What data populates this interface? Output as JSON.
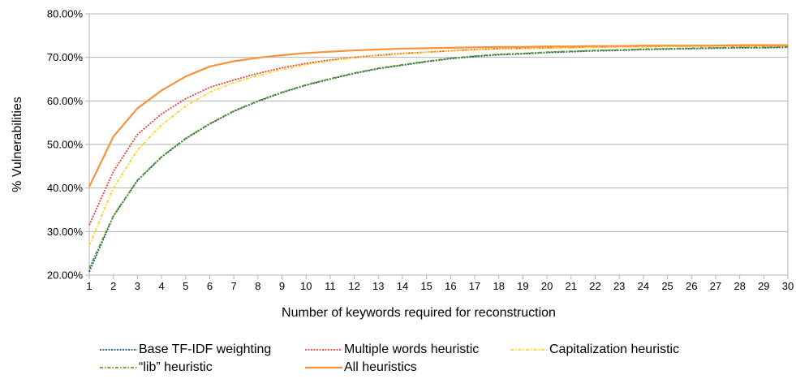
{
  "chart_data": {
    "type": "line",
    "title": "",
    "xlabel": "Number of keywords required for reconstruction",
    "ylabel": "% Vulnerabilities",
    "x": [
      1,
      2,
      3,
      4,
      5,
      6,
      7,
      8,
      9,
      10,
      11,
      12,
      13,
      14,
      15,
      16,
      17,
      18,
      19,
      20,
      21,
      22,
      23,
      24,
      25,
      26,
      27,
      28,
      29,
      30
    ],
    "xlim": [
      1,
      30
    ],
    "ylim": [
      20,
      80
    ],
    "y_ticks": [
      20,
      30,
      40,
      50,
      60,
      70,
      80
    ],
    "y_tick_labels": [
      "20.00%",
      "30.00%",
      "40.00%",
      "50.00%",
      "60.00%",
      "70.00%",
      "80.00%"
    ],
    "grid": true,
    "legend_position": "bottom",
    "series": [
      {
        "name": "Base TF-IDF weighting",
        "color": "#1f4e79",
        "dash": "dotted",
        "values": [
          20.8,
          33.5,
          41.7,
          47.1,
          51.3,
          54.7,
          57.6,
          59.9,
          61.9,
          63.6,
          65.0,
          66.3,
          67.4,
          68.2,
          69.0,
          69.7,
          70.2,
          70.6,
          70.8,
          71.1,
          71.3,
          71.5,
          71.6,
          71.8,
          71.9,
          72.0,
          72.1,
          72.2,
          72.2,
          72.3
        ]
      },
      {
        "name": "Multiple words heuristic",
        "color": "#e8413b",
        "dash": "dotted",
        "values": [
          31.5,
          43.8,
          52.3,
          57.0,
          60.5,
          63.1,
          64.8,
          66.3,
          67.6,
          68.6,
          69.4,
          70.0,
          70.5,
          70.9,
          71.2,
          71.5,
          71.8,
          72.0,
          72.1,
          72.2,
          72.3,
          72.4,
          72.5,
          72.5,
          72.6,
          72.6,
          72.6,
          72.7,
          72.7,
          72.7
        ]
      },
      {
        "name": "Capitalization heuristic",
        "color": "#ffd320",
        "dash": "dashdot",
        "values": [
          26.8,
          40.0,
          48.7,
          54.5,
          58.8,
          62.0,
          64.2,
          65.8,
          67.2,
          68.3,
          69.2,
          69.9,
          70.4,
          70.8,
          71.2,
          71.5,
          71.7,
          71.9,
          72.0,
          72.1,
          72.2,
          72.3,
          72.4,
          72.4,
          72.5,
          72.5,
          72.6,
          72.6,
          72.6,
          72.7
        ]
      },
      {
        "name": "“lib” heuristic",
        "color": "#579d1c",
        "dash": "dashdot",
        "values": [
          21.6,
          33.6,
          41.8,
          47.2,
          51.4,
          54.8,
          57.7,
          60.0,
          62.0,
          63.7,
          65.1,
          66.4,
          67.5,
          68.3,
          69.1,
          69.8,
          70.3,
          70.7,
          70.9,
          71.2,
          71.4,
          71.6,
          71.7,
          71.9,
          72.0,
          72.1,
          72.2,
          72.3,
          72.3,
          72.4
        ]
      },
      {
        "name": "All heuristics",
        "color": "#f7923a",
        "dash": "solid",
        "values": [
          40.3,
          51.8,
          58.3,
          62.4,
          65.6,
          67.9,
          69.1,
          69.9,
          70.5,
          71.0,
          71.3,
          71.6,
          71.8,
          72.0,
          72.1,
          72.2,
          72.3,
          72.4,
          72.4,
          72.5,
          72.5,
          72.6,
          72.6,
          72.7,
          72.7,
          72.7,
          72.7,
          72.8,
          72.8,
          72.8
        ]
      }
    ]
  }
}
